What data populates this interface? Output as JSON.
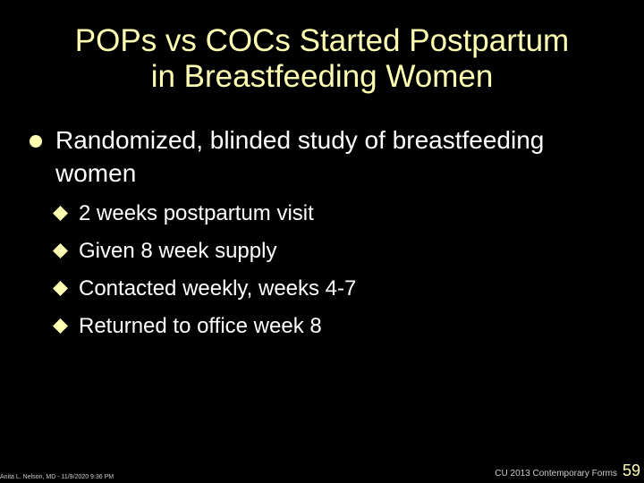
{
  "title": {
    "lines": [
      "POPs vs COCs Started Postpartum",
      "in Breastfeeding Women"
    ]
  },
  "bullets": [
    {
      "text": "Randomized, blinded study of breastfeeding women",
      "subbullets": [
        "2 weeks postpartum visit",
        "Given 8 week supply",
        "Contacted weekly, weeks 4-7",
        "Returned to office week 8"
      ]
    }
  ],
  "footer": {
    "left": "Anita L. Nelson, MD - 11/9/2020 9:36 PM",
    "right": "CU 2013 Contemporary Forms",
    "page": "59"
  }
}
